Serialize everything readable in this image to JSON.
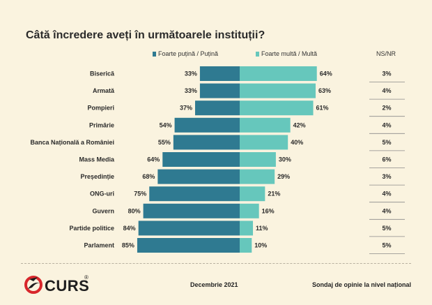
{
  "colors": {
    "low_trust": "#2f7a91",
    "high_trust": "#66c7bc",
    "background": "#faf3df"
  },
  "logo": {
    "text": "CURS",
    "registered": "®"
  },
  "footer": {
    "date": "Decembrie 2021",
    "source": "Sondaj de opinie la nivel național"
  },
  "chart_data": {
    "type": "bar",
    "title": "Câtă încredere aveți în următoarele instituții?",
    "legend": [
      "Foarte puțină / Puțină",
      "Foarte multă / Multă"
    ],
    "nsnr_header": "NS/NR",
    "categories": [
      "Biserică",
      "Armată",
      "Pompieri",
      "Primărie",
      "Banca Națională a României",
      "Mass Media",
      "Președinție",
      "ONG-uri",
      "Guvern",
      "Partide politice",
      "Parlament"
    ],
    "series": [
      {
        "name": "Foarte puțină / Puțină",
        "values": [
          33,
          33,
          37,
          54,
          55,
          64,
          68,
          75,
          80,
          84,
          85
        ]
      },
      {
        "name": "Foarte multă / Multă",
        "values": [
          64,
          63,
          61,
          42,
          40,
          30,
          29,
          21,
          16,
          11,
          10
        ]
      },
      {
        "name": "NS/NR",
        "values": [
          3,
          4,
          2,
          4,
          5,
          6,
          3,
          4,
          4,
          5,
          5
        ]
      }
    ]
  }
}
